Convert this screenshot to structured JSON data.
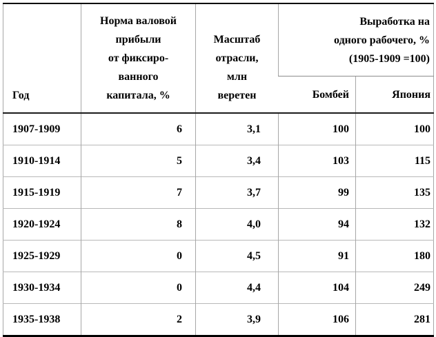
{
  "colors": {
    "outer_border": "#000000",
    "grid_line": "#b8b8b8",
    "column_line": "#a6a6a6",
    "text": "#000000",
    "background": "#ffffff"
  },
  "table": {
    "headers": {
      "year": "Год",
      "profit_rate": "Норма валовой\nприбыли\nот фиксиро-\nванного\nкапитала, %",
      "industry_scale": "Масштаб\nотрасли,\nмлн\nверетен",
      "output_per_worker": "Выработка на\nодного рабочего, %\n(1905-1909 =100)",
      "bombay": "Бомбей",
      "japan": "Япония"
    },
    "rows": [
      {
        "year": "1907-1909",
        "profit": "6",
        "scale": "3,1",
        "bombay": "100",
        "japan": "100"
      },
      {
        "year": "1910-1914",
        "profit": "5",
        "scale": "3,4",
        "bombay": "103",
        "japan": "115"
      },
      {
        "year": "1915-1919",
        "profit": "7",
        "scale": "3,7",
        "bombay": "99",
        "japan": "135"
      },
      {
        "year": "1920-1924",
        "profit": "8",
        "scale": "4,0",
        "bombay": "94",
        "japan": "132"
      },
      {
        "year": "1925-1929",
        "profit": "0",
        "scale": "4,5",
        "bombay": "91",
        "japan": "180"
      },
      {
        "year": "1930-1934",
        "profit": "0",
        "scale": "4,4",
        "bombay": "104",
        "japan": "249"
      },
      {
        "year": "1935-1938",
        "profit": "2",
        "scale": "3,9",
        "bombay": "106",
        "japan": "281"
      }
    ]
  }
}
